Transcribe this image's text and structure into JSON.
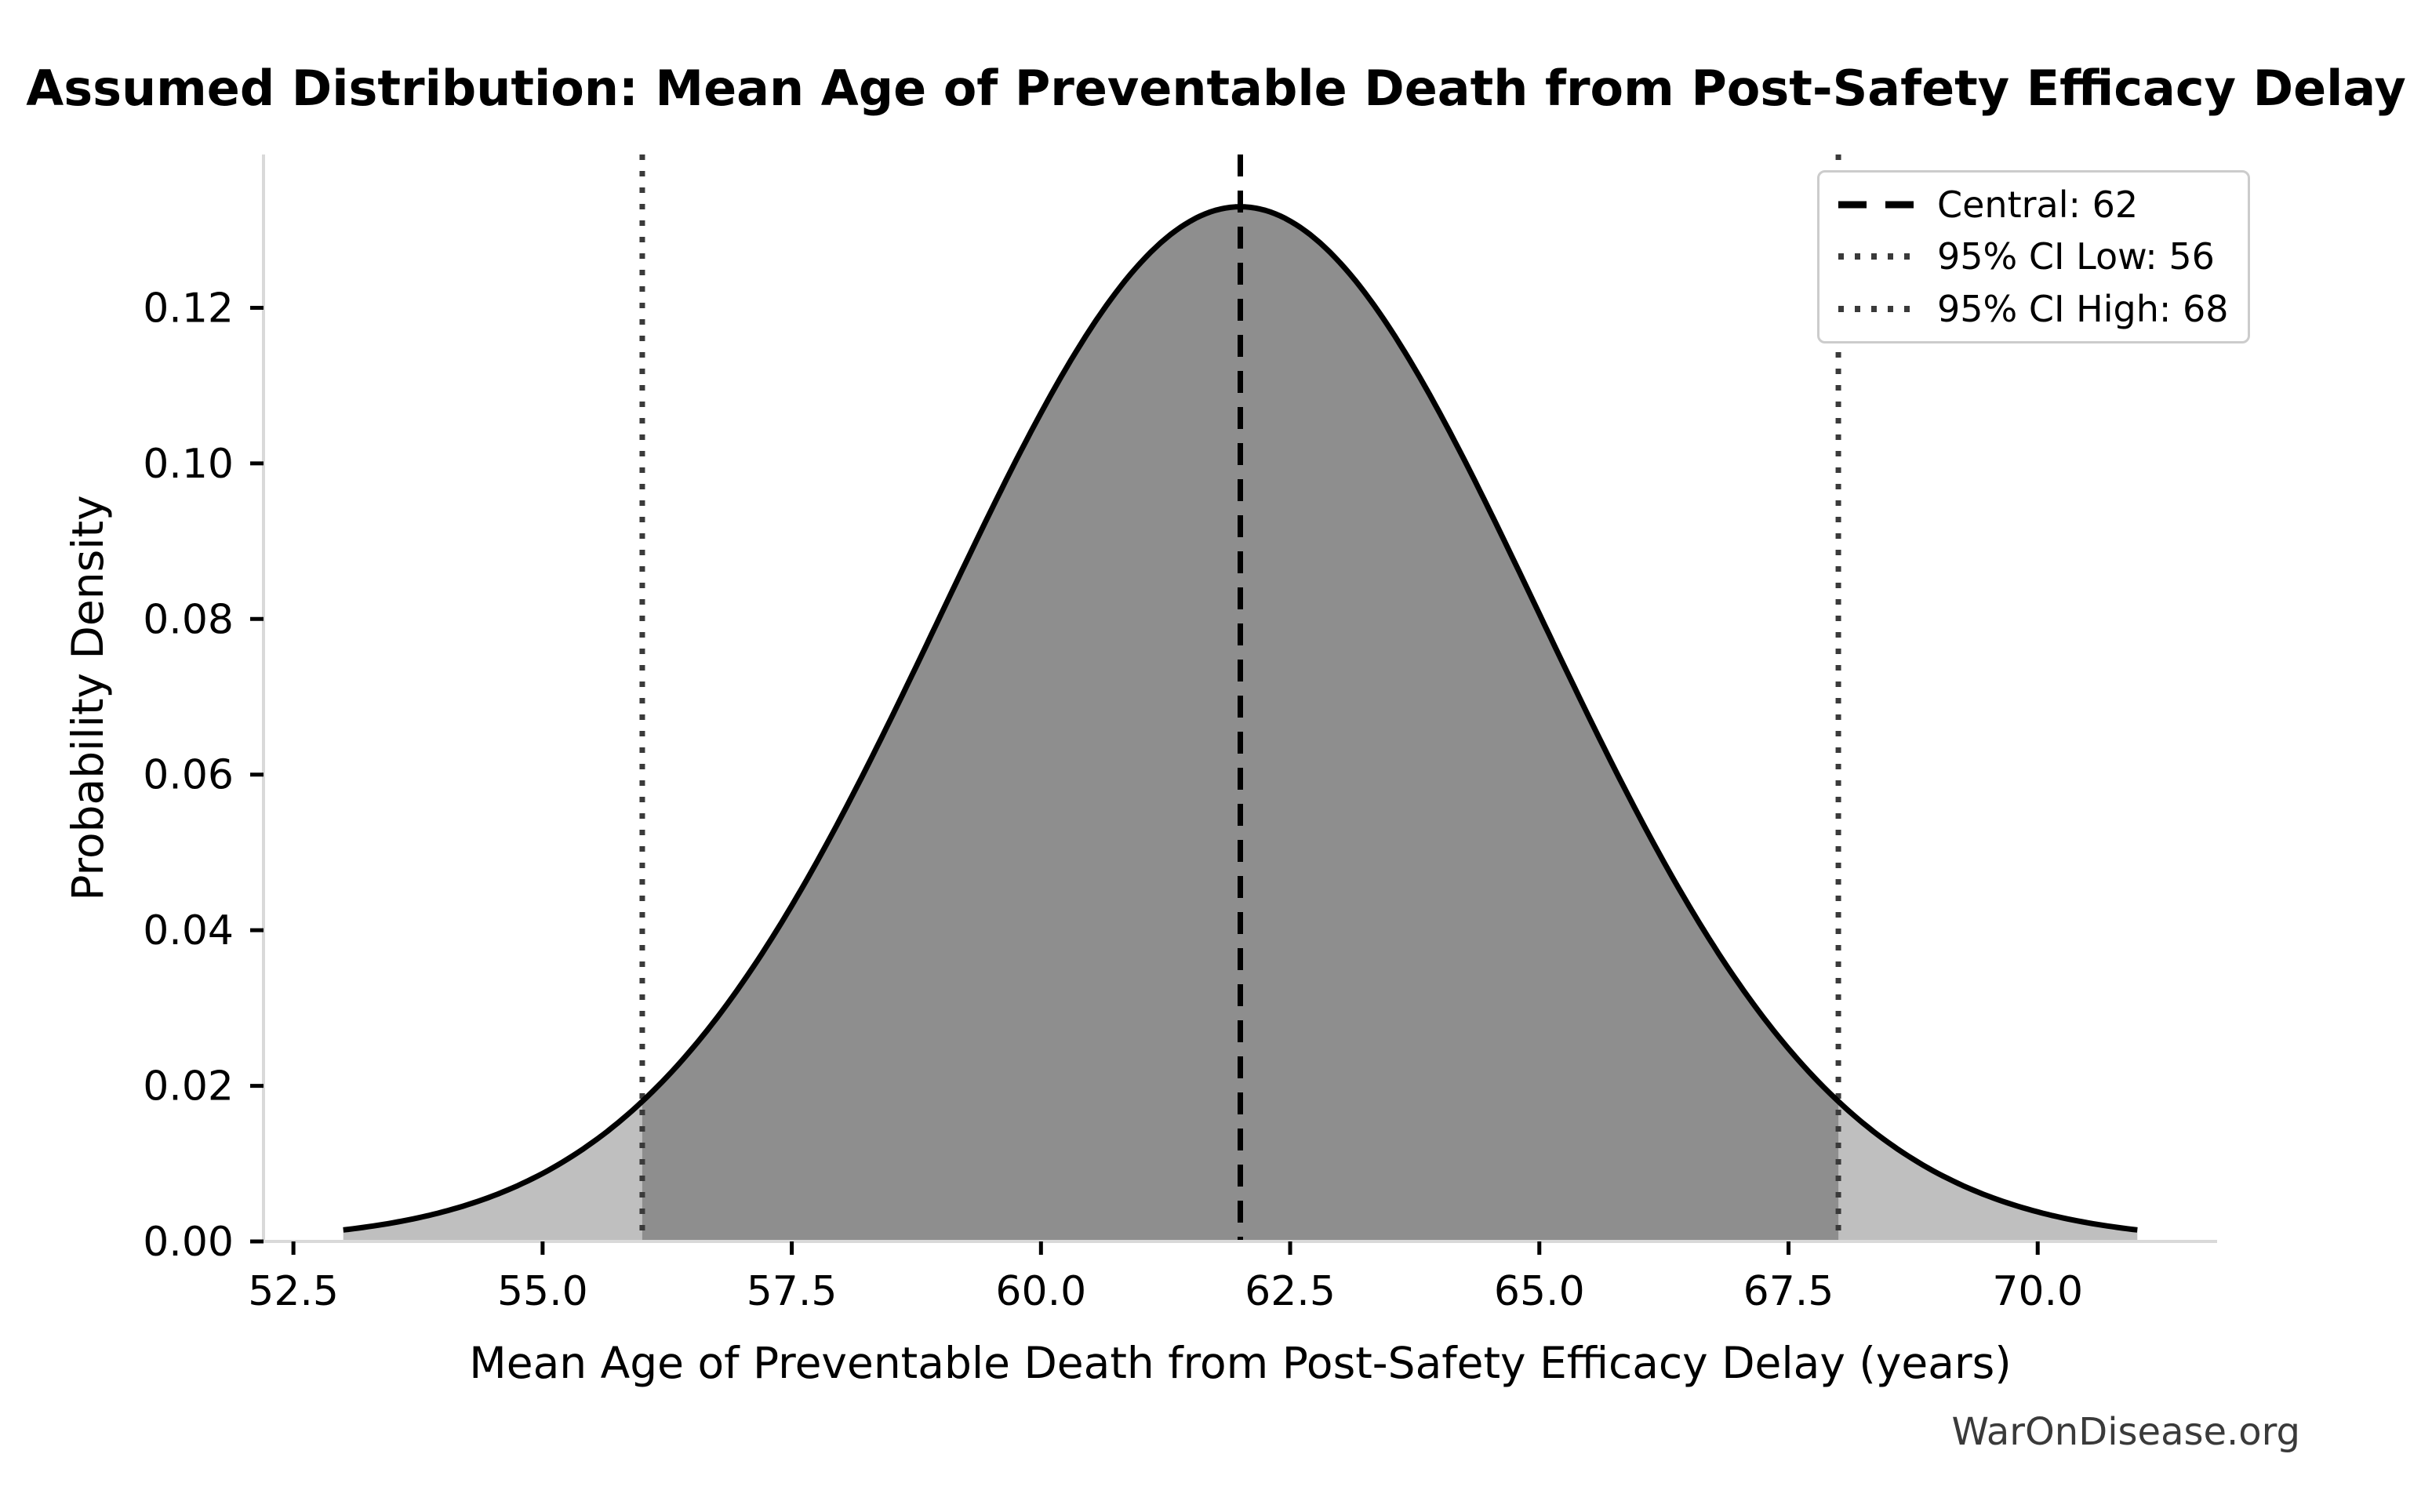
{
  "figure": {
    "watermark": "WarOnDisease.org"
  },
  "chart_data": {
    "type": "area",
    "title": "Assumed Distribution: Mean Age of Preventable Death from Post-Safety Efficacy Delay",
    "xlabel": "Mean Age of Preventable Death from Post-Safety Efficacy Delay (years)",
    "ylabel": "Probability Density",
    "distribution": {
      "shape": "normal",
      "mean": 62,
      "sigma": 3,
      "peak_density": 0.133,
      "curve_x_range": [
        53,
        71
      ]
    },
    "central": 62,
    "ci": {
      "level": "95%",
      "low": 56,
      "high": 68
    },
    "curve_points": {
      "x": [
        53,
        54,
        55,
        56,
        57,
        58,
        59,
        60,
        61,
        62,
        63,
        64,
        65,
        66,
        67,
        68,
        69,
        70,
        71
      ],
      "density": [
        0.0015,
        0.0038,
        0.0087,
        0.018,
        0.0332,
        0.0547,
        0.0807,
        0.1065,
        0.1258,
        0.133,
        0.1258,
        0.1065,
        0.0807,
        0.0547,
        0.0332,
        0.018,
        0.0087,
        0.0038,
        0.0015
      ]
    },
    "x_ticks": {
      "values": [
        52.5,
        55.0,
        57.5,
        60.0,
        62.5,
        65.0,
        67.5,
        70.0
      ],
      "labels": [
        "52.5",
        "55.0",
        "57.5",
        "60.0",
        "62.5",
        "65.0",
        "67.5",
        "70.0"
      ]
    },
    "y_ticks": {
      "values": [
        0.0,
        0.02,
        0.04,
        0.06,
        0.08,
        0.1,
        0.12
      ],
      "labels": [
        "0.00",
        "0.02",
        "0.04",
        "0.06",
        "0.08",
        "0.10",
        "0.12"
      ]
    },
    "xlim": [
      52.2,
      71.8
    ],
    "ylim": [
      0,
      0.1397
    ],
    "grid": false,
    "legend": {
      "position": "upper right",
      "entries": [
        {
          "label": "Central: 62",
          "value": 62,
          "style": "dashed",
          "color": "#000000"
        },
        {
          "label": "95% CI Low: 56",
          "value": 56,
          "style": "dotted",
          "color": "#3a3a3a"
        },
        {
          "label": "95% CI High: 68",
          "value": 68,
          "style": "dotted",
          "color": "#3a3a3a"
        }
      ]
    },
    "colors": {
      "curve": "#000000",
      "fill_outer": "#bfbfbf",
      "fill_ci": "#8e8e8e",
      "spine": "#d9d9d9",
      "tick": "#000000",
      "text": "#000000",
      "legend_border": "#cccccc",
      "watermark": "#3a3a3a"
    }
  }
}
